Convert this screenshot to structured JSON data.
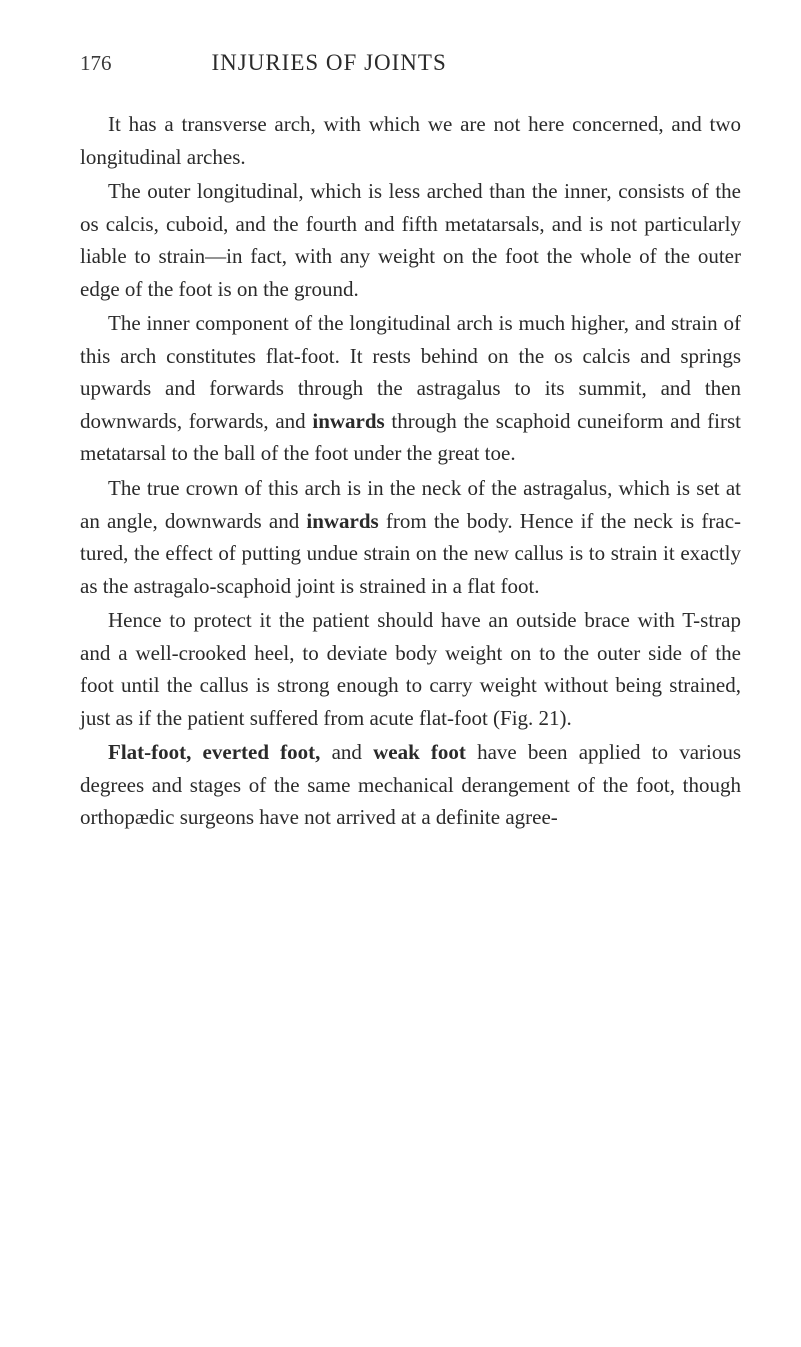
{
  "header": {
    "page_number": "176",
    "chapter_title": "INJURIES OF JOINTS"
  },
  "paragraphs": {
    "p1": "It has a transverse arch, with which we are not here concerned, and two longitudinal arches.",
    "p2": "The outer longitudinal, which is less arched than the inner, consists of the os calcis, cuboid, and the fourth and fifth metatarsals, and is not particularly liable to strain—in fact, with any weight on the foot the whole of the outer edge of the foot is on the ground.",
    "p3_part1": "The inner component of the longitudinal arch is much higher, and strain of this arch constitutes flat-foot. It rests behind on the os calcis and springs upwards and forwards through the astragalus to its summit, and then downwards, forwards, and ",
    "p3_bold": "inwards",
    "p3_part2": " through the scaphoid cuneiform and first metatarsal to the ball of the foot under the great toe.",
    "p4_part1": "The true crown of this arch is in the neck of the astragalus, which is set at an angle, downwards and ",
    "p4_bold": "inwards",
    "p4_part2": " from the body. Hence if the neck is frac­tured, the effect of putting undue strain on the new callus is to strain it exactly as the astragalo-scaphoid joint is strained in a flat foot.",
    "p5": "Hence to protect it the patient should have an outside brace with T-strap and a well-crooked heel, to deviate body weight on to the outer side of the foot until the callus is strong enough to carry weight without being strained, just as if the patient suffered from acute flat-foot (Fig. 21).",
    "p6_bold1": "Flat-foot, everted foot,",
    "p6_mid": " and ",
    "p6_bold2": "weak foot",
    "p6_part2": " have been applied to various degrees and stages of the same mechanical derangement of the foot, though ortho­pædic surgeons have not arrived at a definite agree-"
  },
  "styling": {
    "background_color": "#ffffff",
    "text_color": "#2a2a2a",
    "body_fontsize": 21,
    "header_fontsize": 23,
    "pagenum_fontsize": 21,
    "line_height": 1.55,
    "text_indent": 28,
    "font_family": "Georgia, Times New Roman, serif"
  }
}
